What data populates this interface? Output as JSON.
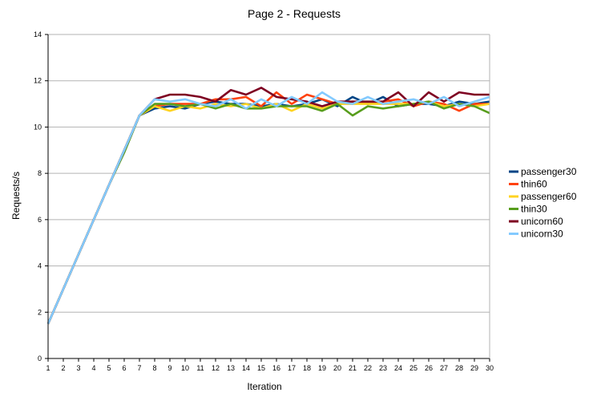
{
  "chart_data": {
    "type": "line",
    "title": "Page 2 - Requests",
    "xlabel": "Iteration",
    "ylabel": "Requests/s",
    "ylim": [
      0,
      14
    ],
    "y_ticks": [
      0,
      2,
      4,
      6,
      8,
      10,
      12,
      14
    ],
    "grid": "horizontal",
    "legend_position": "right",
    "x": [
      1,
      2,
      3,
      4,
      5,
      6,
      7,
      8,
      9,
      10,
      11,
      12,
      13,
      14,
      15,
      16,
      17,
      18,
      19,
      20,
      21,
      22,
      23,
      24,
      25,
      26,
      27,
      28,
      29,
      30
    ],
    "series": [
      {
        "name": "passenger30",
        "color": "#004586",
        "values": [
          1.5,
          3.0,
          4.5,
          6.0,
          7.5,
          9.0,
          10.5,
          10.8,
          10.9,
          10.8,
          11.0,
          11.1,
          11.0,
          11.0,
          10.9,
          11.0,
          10.9,
          11.0,
          11.2,
          10.9,
          11.3,
          11.0,
          11.3,
          10.9,
          11.0,
          11.0,
          10.9,
          11.1,
          11.0,
          11.1
        ]
      },
      {
        "name": "thin60",
        "color": "#ff420e",
        "values": [
          1.5,
          3.0,
          4.5,
          6.0,
          7.5,
          9.0,
          10.5,
          10.9,
          11.0,
          11.0,
          11.0,
          11.2,
          11.2,
          11.3,
          10.9,
          11.5,
          11.0,
          11.4,
          11.2,
          11.0,
          11.1,
          11.0,
          11.1,
          11.2,
          10.9,
          11.1,
          11.0,
          10.7,
          11.0,
          11.0
        ]
      },
      {
        "name": "passenger60",
        "color": "#ffd320",
        "values": [
          1.5,
          3.0,
          4.5,
          6.0,
          7.5,
          9.0,
          10.5,
          10.9,
          10.7,
          10.9,
          10.8,
          11.0,
          10.9,
          11.0,
          10.8,
          11.0,
          10.7,
          11.0,
          10.8,
          11.0,
          11.0,
          11.0,
          11.0,
          11.0,
          11.0,
          11.1,
          10.9,
          11.0,
          10.9,
          11.0
        ]
      },
      {
        "name": "thin30",
        "color": "#579d1c",
        "values": [
          1.5,
          3.0,
          4.5,
          6.0,
          7.5,
          8.9,
          10.5,
          11.0,
          11.0,
          10.9,
          11.0,
          10.8,
          11.0,
          10.8,
          10.8,
          10.9,
          10.9,
          10.9,
          10.7,
          11.0,
          10.5,
          10.9,
          10.8,
          10.9,
          11.0,
          11.1,
          10.8,
          11.0,
          10.9,
          10.6
        ]
      },
      {
        "name": "unicorn60",
        "color": "#7e0021",
        "values": [
          1.5,
          3.0,
          4.5,
          6.0,
          7.5,
          9.0,
          10.5,
          11.2,
          11.4,
          11.4,
          11.3,
          11.1,
          11.6,
          11.4,
          11.7,
          11.3,
          11.2,
          11.1,
          10.9,
          11.1,
          11.1,
          11.1,
          11.1,
          11.5,
          10.9,
          11.5,
          11.1,
          11.5,
          11.4,
          11.4
        ]
      },
      {
        "name": "unicorn30",
        "color": "#83caff",
        "values": [
          1.5,
          3.0,
          4.5,
          6.0,
          7.5,
          9.0,
          10.5,
          11.2,
          11.1,
          11.2,
          11.0,
          10.9,
          11.2,
          10.8,
          11.2,
          10.9,
          11.3,
          11.0,
          11.5,
          11.1,
          11.0,
          11.3,
          11.0,
          11.1,
          11.2,
          11.0,
          11.3,
          10.9,
          11.1,
          11.3
        ]
      }
    ]
  }
}
